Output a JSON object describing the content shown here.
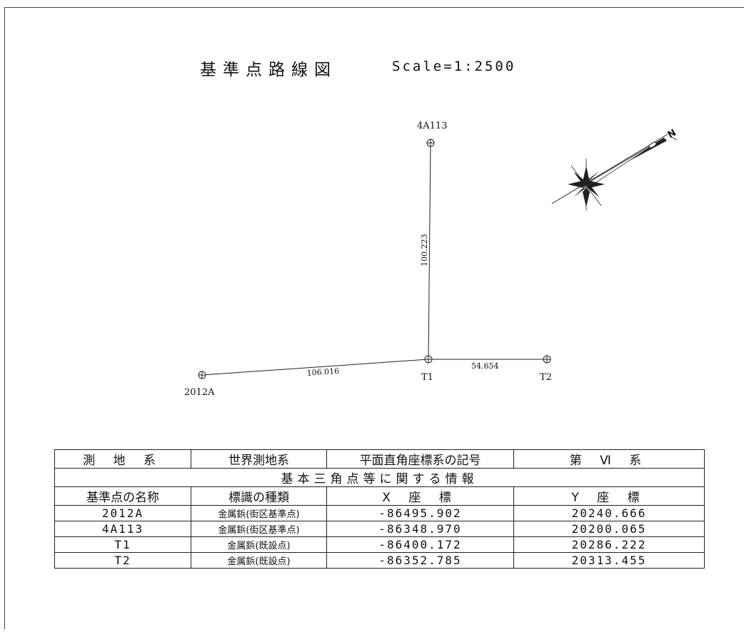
{
  "header": {
    "title": "基準点路線図",
    "scale": "Scale=1:2500"
  },
  "map": {
    "points": [
      {
        "name": "4A113"
      },
      {
        "name": "2012A"
      },
      {
        "name": "T1"
      },
      {
        "name": "T2"
      }
    ],
    "legs": [
      {
        "from": "T1",
        "to": "4A113",
        "distance": "100.223"
      },
      {
        "from": "2012A",
        "to": "T1",
        "distance": "106.016"
      },
      {
        "from": "T1",
        "to": "T2",
        "distance": "54.654"
      }
    ],
    "north_arrow": {
      "label": "N",
      "icon": "north-arrow-icon"
    }
  },
  "table": {
    "geodetic_label": "測 地 系",
    "geodetic_value": "世界測地系",
    "plane_label": "平面直角座標系の記号",
    "plane_value": "第 Ⅵ 系",
    "section_title": "基本三角点等に関する情報",
    "columns": [
      "基準点の名称",
      "標識の種類",
      "X 座 標",
      "Y 座 標"
    ],
    "rows": [
      {
        "name": "2012A",
        "marker": "金属鋲(街区基準点)",
        "x": "-86495.902",
        "y": "20240.666"
      },
      {
        "name": "4A113",
        "marker": "金属鋲(街区基準点)",
        "x": "-86348.970",
        "y": "20200.065"
      },
      {
        "name": "T1",
        "marker": "金属鋲(既設点)",
        "x": "-86400.172",
        "y": "20286.222"
      },
      {
        "name": "T2",
        "marker": "金属鋲(既設点)",
        "x": "-86352.785",
        "y": "20313.455"
      }
    ]
  }
}
